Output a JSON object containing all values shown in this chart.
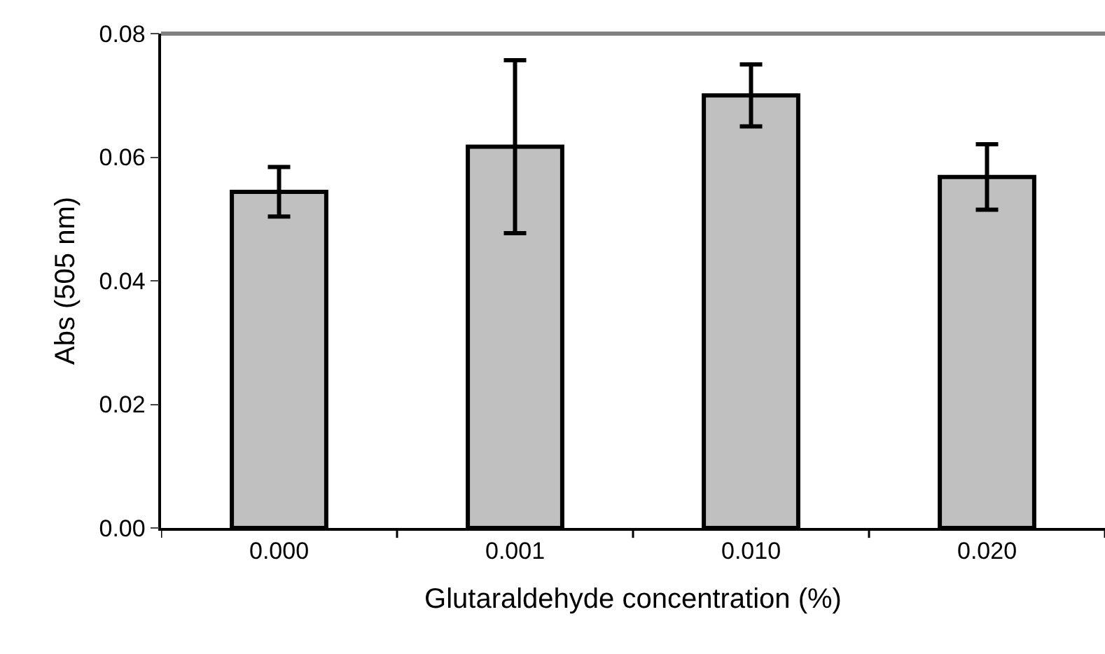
{
  "chart_data": {
    "type": "bar",
    "xlabel": "Glutaraldehyde concentration (%)",
    "ylabel": "Abs (505 nm)",
    "categories": [
      "0.000",
      "0.001",
      "0.010",
      "0.020"
    ],
    "values": [
      0.0544,
      0.0617,
      0.07,
      0.0568
    ],
    "errors": [
      0.004,
      0.014,
      0.005,
      0.0053
    ],
    "color": "#c0c0c0",
    "ylim": [
      0,
      0.08
    ],
    "yticks": [
      {
        "value": 0,
        "label": "0.00"
      },
      {
        "value": 0.02,
        "label": "0.02"
      },
      {
        "value": 0.04,
        "label": "0.04"
      },
      {
        "value": 0.06,
        "label": "0.06"
      },
      {
        "value": 0.08,
        "label": "0.08"
      }
    ]
  }
}
